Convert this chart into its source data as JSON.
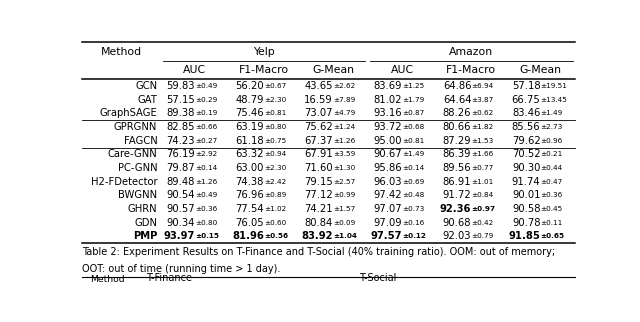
{
  "title_line1": "Table 2: Experiment Results on T-Finance and T-Social (40% training ratio). OOM: out of memory;",
  "title_line2": "OOT: out of time (running time > 1 day).",
  "col_groups": [
    "Yelp",
    "Amazon"
  ],
  "sub_cols": [
    "AUC",
    "F1-Macro",
    "G-Mean"
  ],
  "methods": [
    "GCN",
    "GAT",
    "GraphSAGE",
    "GPRGNN",
    "FAGCN",
    "Care-GNN",
    "PC-GNN",
    "H2-FDetector",
    "BWGNN",
    "GHRN",
    "GDN",
    "PMP"
  ],
  "bold_method": "PMP",
  "sep_after_rows": [
    2,
    4
  ],
  "data": {
    "GCN": [
      [
        "59.83",
        "0.49"
      ],
      [
        "56.20",
        "0.67"
      ],
      [
        "43.65",
        "2.62"
      ],
      [
        "83.69",
        "1.25"
      ],
      [
        "64.86",
        "6.94"
      ],
      [
        "57.18",
        "19.51"
      ]
    ],
    "GAT": [
      [
        "57.15",
        "0.29"
      ],
      [
        "48.79",
        "2.30"
      ],
      [
        "16.59",
        "7.89"
      ],
      [
        "81.02",
        "1.79"
      ],
      [
        "64.64",
        "3.87"
      ],
      [
        "66.75",
        "13.45"
      ]
    ],
    "GraphSAGE": [
      [
        "89.38",
        "0.19"
      ],
      [
        "75.46",
        "0.81"
      ],
      [
        "73.07",
        "4.79"
      ],
      [
        "93.16",
        "0.87"
      ],
      [
        "88.26",
        "0.62"
      ],
      [
        "83.46",
        "1.49"
      ]
    ],
    "GPRGNN": [
      [
        "82.85",
        "0.66"
      ],
      [
        "63.19",
        "0.80"
      ],
      [
        "75.62",
        "1.24"
      ],
      [
        "93.72",
        "0.68"
      ],
      [
        "80.66",
        "1.82"
      ],
      [
        "85.56",
        "2.73"
      ]
    ],
    "FAGCN": [
      [
        "74.23",
        "0.27"
      ],
      [
        "61.18",
        "0.75"
      ],
      [
        "67.37",
        "1.26"
      ],
      [
        "95.00",
        "0.81"
      ],
      [
        "87.29",
        "1.53"
      ],
      [
        "79.62",
        "0.96"
      ]
    ],
    "Care-GNN": [
      [
        "76.19",
        "2.92"
      ],
      [
        "63.32",
        "0.94"
      ],
      [
        "67.91",
        "3.59"
      ],
      [
        "90.67",
        "1.49"
      ],
      [
        "86.39",
        "1.66"
      ],
      [
        "70.52",
        "0.21"
      ]
    ],
    "PC-GNN": [
      [
        "79.87",
        "0.14"
      ],
      [
        "63.00",
        "2.30"
      ],
      [
        "71.60",
        "1.30"
      ],
      [
        "95.86",
        "0.14"
      ],
      [
        "89.56",
        "0.77"
      ],
      [
        "90.30",
        "0.44"
      ]
    ],
    "H2-FDetector": [
      [
        "89.48",
        "1.26"
      ],
      [
        "74.38",
        "2.42"
      ],
      [
        "79.15",
        "2.57"
      ],
      [
        "96.03",
        "0.69"
      ],
      [
        "86.91",
        "1.01"
      ],
      [
        "91.74",
        "0.47"
      ]
    ],
    "BWGNN": [
      [
        "90.54",
        "0.49"
      ],
      [
        "76.96",
        "0.89"
      ],
      [
        "77.12",
        "0.99"
      ],
      [
        "97.42",
        "0.48"
      ],
      [
        "91.72",
        "0.84"
      ],
      [
        "90.01",
        "0.36"
      ]
    ],
    "GHRN": [
      [
        "90.57",
        "0.36"
      ],
      [
        "77.54",
        "1.02"
      ],
      [
        "74.21",
        "1.57"
      ],
      [
        "97.07",
        "0.73"
      ],
      [
        "92.36",
        "0.97"
      ],
      [
        "90.58",
        "0.45"
      ]
    ],
    "GDN": [
      [
        "90.34",
        "0.80"
      ],
      [
        "76.05",
        "0.60"
      ],
      [
        "80.84",
        "0.09"
      ],
      [
        "97.09",
        "0.16"
      ],
      [
        "90.68",
        "0.42"
      ],
      [
        "90.78",
        "0.11"
      ]
    ],
    "PMP": [
      [
        "93.97",
        "0.15"
      ],
      [
        "81.96",
        "0.56"
      ],
      [
        "83.92",
        "1.04"
      ],
      [
        "97.57",
        "0.12"
      ],
      [
        "92.03",
        "0.79"
      ],
      [
        "91.85",
        "0.65"
      ]
    ]
  },
  "bold_cells": {
    "GCN": [],
    "GAT": [],
    "GraphSAGE": [],
    "GPRGNN": [],
    "FAGCN": [],
    "Care-GNN": [],
    "PC-GNN": [],
    "H2-FDetector": [],
    "BWGNN": [],
    "GHRN": [
      4
    ],
    "GDN": [],
    "PMP": [
      0,
      1,
      2,
      3,
      5
    ]
  },
  "background_color": "#ffffff",
  "text_color": "#000000",
  "main_fs": 7.2,
  "sub_fs": 5.2,
  "header_fs": 7.8,
  "caption_fs": 7.0
}
